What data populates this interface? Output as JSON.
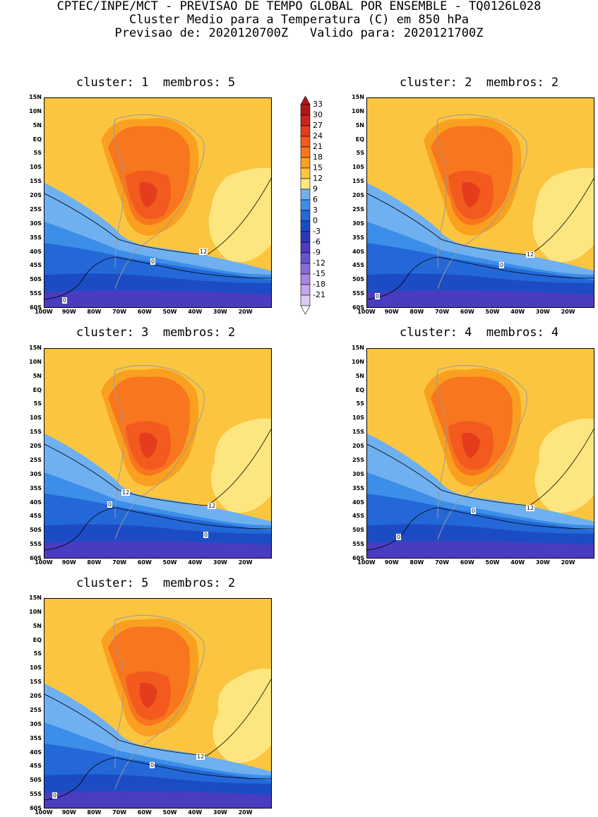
{
  "header": {
    "line1": "CPTEC/INPE/MCT - PREVISAO DE TEMPO GLOBAL POR ENSEMBLE - TQ0126L028",
    "line2": "Cluster Medio para a Temperatura (C) em 850 hPa",
    "line3": "Previsao de: 2020120700Z   Valido para: 2020121700Z"
  },
  "panels": [
    {
      "title": "cluster: 1  membros: 5",
      "contour_labels": [
        "12",
        "0",
        "0"
      ]
    },
    {
      "title": "cluster: 2  membros: 2",
      "contour_labels": [
        "12",
        "0",
        "0"
      ]
    },
    {
      "title": "cluster: 3  membros: 2",
      "contour_labels": [
        "12",
        "0",
        "12",
        "0"
      ]
    },
    {
      "title": "cluster: 4  membros: 4",
      "contour_labels": [
        "0",
        "12",
        "0"
      ]
    },
    {
      "title": "cluster: 5  membros: 2",
      "contour_labels": [
        "12",
        "0",
        "0"
      ]
    }
  ],
  "lat_labels": [
    "15N",
    "10N",
    "5N",
    "EQ",
    "5S",
    "10S",
    "15S",
    "20S",
    "25S",
    "30S",
    "35S",
    "40S",
    "45S",
    "50S",
    "55S",
    "60S"
  ],
  "lon_labels": [
    "100W",
    "90W",
    "80W",
    "70W",
    "60W",
    "50W",
    "40W",
    "30W",
    "20W"
  ],
  "colorbar": {
    "levels": [
      "33",
      "30",
      "27",
      "24",
      "21",
      "18",
      "15",
      "12",
      "9",
      "6",
      "3",
      "0",
      "-3",
      "-6",
      "-9",
      "-12",
      "-15",
      "-18",
      "-21"
    ],
    "colors": [
      "#b01818",
      "#cc2222",
      "#e43c1c",
      "#f25a1e",
      "#f8761e",
      "#faa020",
      "#fbc540",
      "#fde680",
      "#6fb0f0",
      "#3c8ee8",
      "#2468d8",
      "#1c4cc4",
      "#2a38b8",
      "#4a3cc0",
      "#6a52cc",
      "#8a6ad8",
      "#a886e2",
      "#c4a6ec",
      "#dccaf4"
    ]
  }
}
